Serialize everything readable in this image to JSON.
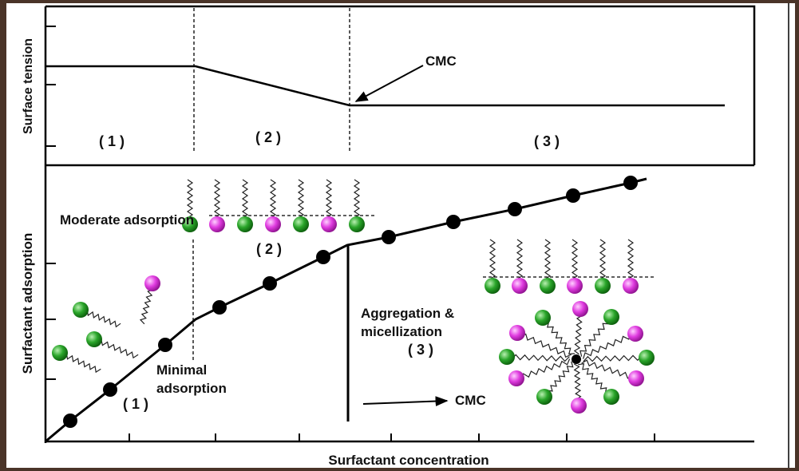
{
  "top_panel": {
    "y_label": "Surface tension",
    "regions": [
      "( 1 )",
      "( 2 )",
      "( 3 )"
    ],
    "annotation": "CMC"
  },
  "bottom_panel": {
    "y_label": "Surfactant adsorption",
    "moderate": "Moderate adsorption",
    "moderate_region": "( 2 )",
    "aggregation_1": "Aggregation &",
    "aggregation_2": "micellization",
    "aggregation_region": "( 3 )",
    "minimal_1": "Minimal",
    "minimal_2": "adsorption",
    "minimal_region": "( 1 )",
    "annotation": "CMC"
  },
  "x_label": "Surfactant concentration"
}
